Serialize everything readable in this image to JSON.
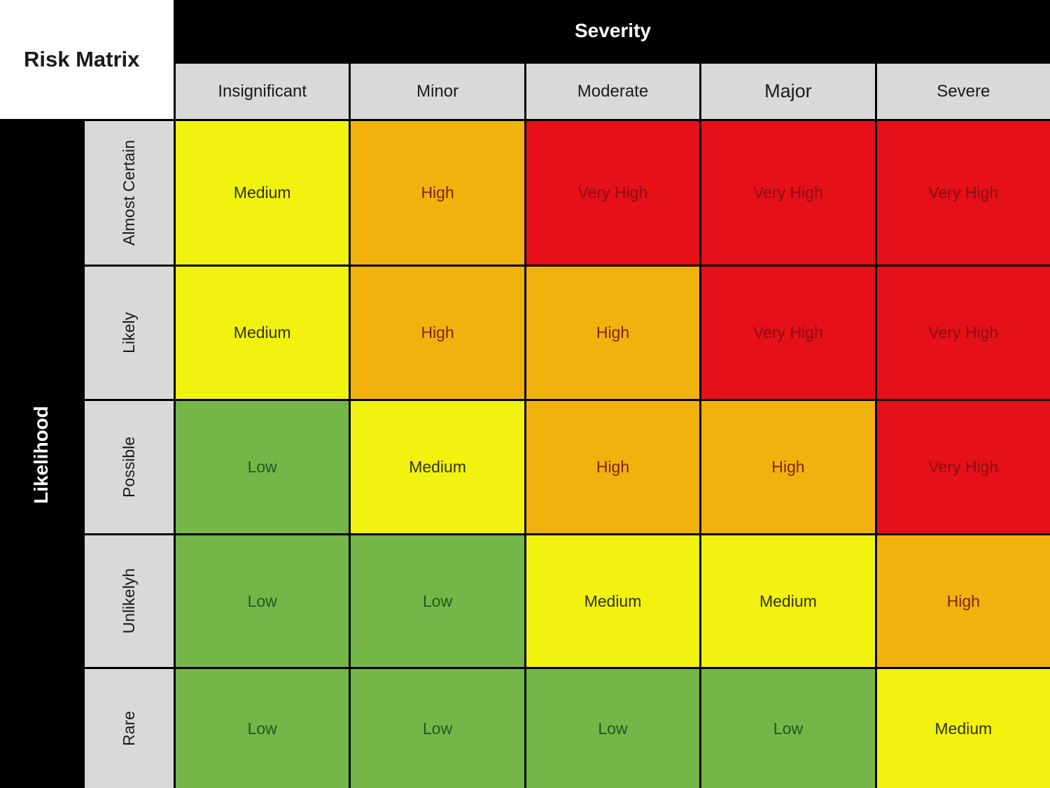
{
  "title": "Risk Matrix",
  "axes": {
    "column_axis": "Severity",
    "row_axis": "Likelihood"
  },
  "columns": [
    "Insignificant",
    "Minor",
    "Moderate",
    "Major",
    "Severe"
  ],
  "rows": [
    "Almost Certain",
    "Likely",
    "Possible",
    "Unlikelyh",
    "Rare"
  ],
  "levels": {
    "Low": {
      "bg": "#74B648",
      "fg": "#1C5A1E"
    },
    "Medium": {
      "bg": "#F2F210",
      "fg": "#333300"
    },
    "High": {
      "bg": "#F2B20E",
      "fg": "#7A2808"
    },
    "Very High": {
      "bg": "#E51018",
      "fg": "#8C0E12"
    }
  },
  "header_bg": "#D9D9D9",
  "axis_band_bg": "#000000",
  "axis_band_fg": "#FFFFFF",
  "matrix": [
    [
      "Medium",
      "High",
      "Very High",
      "Very High",
      "Very High"
    ],
    [
      "Medium",
      "High",
      "High",
      "Very High",
      "Very High"
    ],
    [
      "Low",
      "Medium",
      "High",
      "High",
      "Very High"
    ],
    [
      "Low",
      "Low",
      "Medium",
      "Medium",
      "High"
    ],
    [
      "Low",
      "Low",
      "Low",
      "Low",
      "Medium"
    ]
  ]
}
